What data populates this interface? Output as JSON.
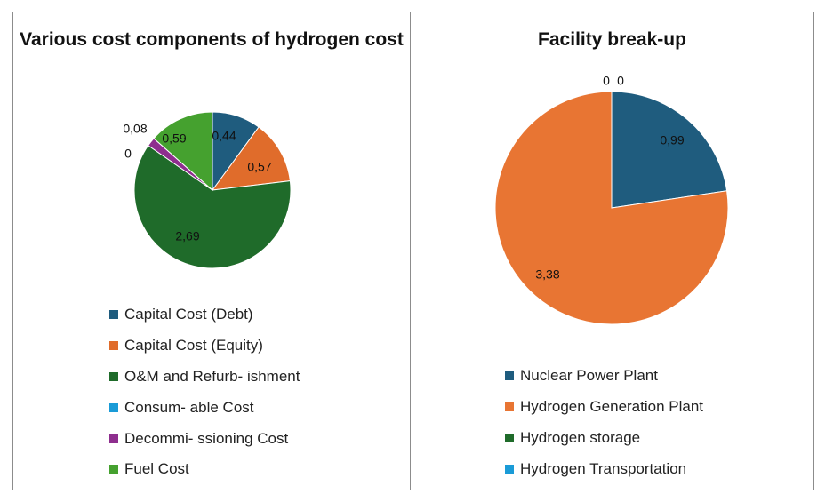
{
  "chart_data": [
    {
      "type": "pie",
      "title": "Various cost components of hydrogen cost",
      "categories": [
        "Capital Cost (Debt)",
        "Capital Cost (Equity)",
        "O&M and Refurb- ishment",
        "Consum- able Cost",
        "Decommi- ssioning Cost",
        "Fuel Cost"
      ],
      "values": [
        0.44,
        0.57,
        2.69,
        0,
        0.08,
        0.59
      ],
      "data_labels": [
        "0,44",
        "0,57",
        "2,69",
        "0",
        "0,08",
        "0,59"
      ],
      "colors": [
        "#1f5c7e",
        "#e06c2b",
        "#1f6b2a",
        "#1a9bd7",
        "#8e2e8e",
        "#45a12f"
      ],
      "legend": "bottom"
    },
    {
      "type": "pie",
      "title": "Facility break-up",
      "categories": [
        "Nuclear Power Plant",
        "Hydrogen Generation Plant",
        "Hydrogen storage",
        "Hydrogen Transportation"
      ],
      "values": [
        0.99,
        3.38,
        0,
        0
      ],
      "data_labels": [
        "0,99",
        "3,38",
        "0",
        "0"
      ],
      "colors": [
        "#1f5c7e",
        "#e87533",
        "#1f6b2a",
        "#1a9bd7"
      ],
      "legend": "bottom"
    }
  ]
}
